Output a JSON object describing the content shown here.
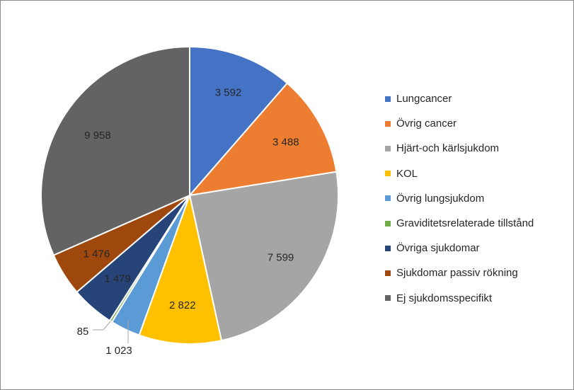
{
  "chart_data": {
    "type": "pie",
    "start_angle_deg": 0,
    "direction": "clockwise",
    "series": [
      {
        "name": "Lungcancer",
        "value": 3592,
        "label": "3 592",
        "color": "#4472c4"
      },
      {
        "name": "Övrig cancer",
        "value": 3488,
        "label": "3 488",
        "color": "#ed7d31"
      },
      {
        "name": "Hjärt-och kärlsjukdom",
        "value": 7599,
        "label": "7 599",
        "color": "#a5a5a5"
      },
      {
        "name": "KOL",
        "value": 2822,
        "label": "2 822",
        "color": "#ffc000"
      },
      {
        "name": "Övrig lungsjukdom",
        "value": 1023,
        "label": "1 023",
        "color": "#5b9bd5"
      },
      {
        "name": "Graviditetsrelaterade tillstånd",
        "value": 85,
        "label": "85",
        "color": "#70ad47"
      },
      {
        "name": "Övriga sjukdomar",
        "value": 1479,
        "label": "1 479",
        "color": "#264478"
      },
      {
        "name": "Sjukdomar passiv rökning",
        "value": 1476,
        "label": "1 476",
        "color": "#9e480e"
      },
      {
        "name": "Ej sjukdomsspecifikt",
        "value": 9958,
        "label": "9 958",
        "color": "#636363"
      }
    ],
    "legend_position": "right"
  }
}
